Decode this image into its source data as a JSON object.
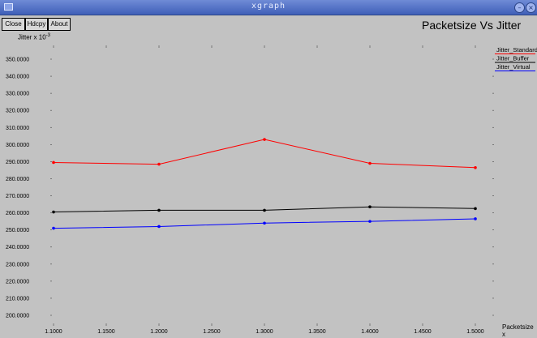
{
  "window": {
    "title": "xgraph",
    "colors": {
      "titlebar": "#4a69c2",
      "background": "#c2c2c2"
    },
    "icons": [
      "window-menu-icon",
      "minimize-icon",
      "close-icon"
    ]
  },
  "toolbar": {
    "close_label": "Close",
    "hdcpy_label": "Hdcpy",
    "about_label": "About"
  },
  "chart_data": {
    "type": "line",
    "title": "Packetsize Vs Jitter",
    "ylabel": "Jitter x 10",
    "ylabel_exponent": "-3",
    "xlabel": "Packetsize x",
    "ylim": [
      195,
      355
    ],
    "xlim": [
      1.08,
      1.52
    ],
    "grid": false,
    "legend_position": "top-right",
    "y_ticks": [
      {
        "value": 200,
        "label": "200.0000"
      },
      {
        "value": 210,
        "label": "210.0000"
      },
      {
        "value": 220,
        "label": "220.0000"
      },
      {
        "value": 230,
        "label": "230.0000"
      },
      {
        "value": 240,
        "label": "240.0000"
      },
      {
        "value": 250,
        "label": "250.0000"
      },
      {
        "value": 260,
        "label": "260.0000"
      },
      {
        "value": 270,
        "label": "270.0000"
      },
      {
        "value": 280,
        "label": "280.0000"
      },
      {
        "value": 290,
        "label": "290.0000"
      },
      {
        "value": 300,
        "label": "300.0000"
      },
      {
        "value": 310,
        "label": "310.0000"
      },
      {
        "value": 320,
        "label": "320.0000"
      },
      {
        "value": 330,
        "label": "330.0000"
      },
      {
        "value": 340,
        "label": "340.0000"
      },
      {
        "value": 350,
        "label": "350.0000"
      }
    ],
    "x_ticks": [
      {
        "value": 1.1,
        "label": "1.1000"
      },
      {
        "value": 1.15,
        "label": "1.1500"
      },
      {
        "value": 1.2,
        "label": "1.2000"
      },
      {
        "value": 1.25,
        "label": "1.2500"
      },
      {
        "value": 1.3,
        "label": "1.3000"
      },
      {
        "value": 1.35,
        "label": "1.3500"
      },
      {
        "value": 1.4,
        "label": "1.4000"
      },
      {
        "value": 1.45,
        "label": "1.4500"
      },
      {
        "value": 1.5,
        "label": "1.5000"
      }
    ],
    "x": [
      1.1,
      1.2,
      1.3,
      1.4,
      1.5
    ],
    "series": [
      {
        "name": "Jitter_Standard",
        "color": "#ff0000",
        "values": [
          289.5,
          288.5,
          303.0,
          289.0,
          286.5
        ]
      },
      {
        "name": "Jitter_Buffer",
        "color": "#000000",
        "values": [
          260.5,
          261.5,
          261.5,
          263.5,
          262.5
        ]
      },
      {
        "name": "Jitter_Virtual",
        "color": "#0000ff",
        "values": [
          251.0,
          252.0,
          254.0,
          255.0,
          256.5
        ]
      }
    ]
  }
}
